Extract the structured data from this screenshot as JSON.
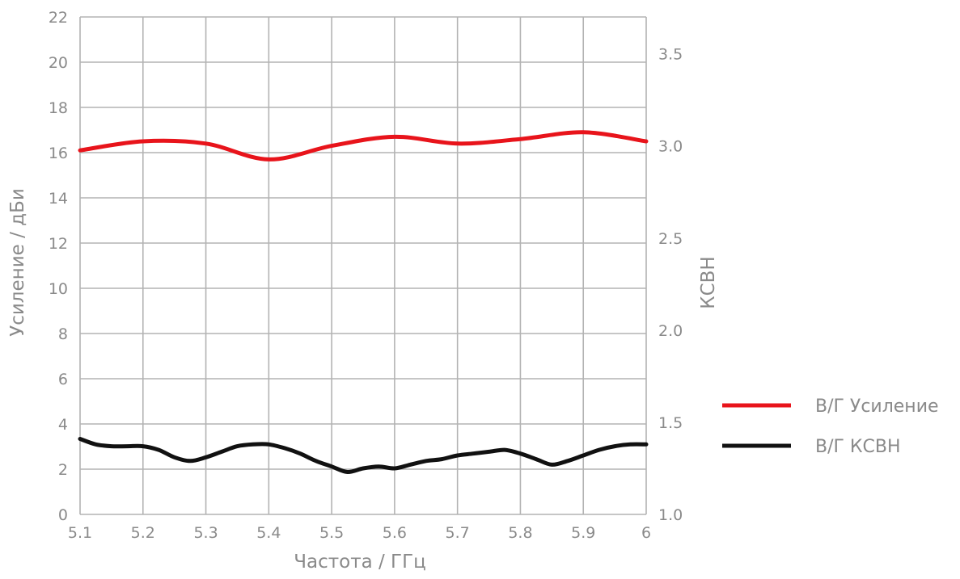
{
  "chart_data": {
    "type": "line",
    "xlabel": "Частота / ГГц",
    "ylabel": "Усиление / дБи",
    "y2label": "КСВН",
    "xlim": [
      5.1,
      6.0
    ],
    "ylim": [
      0,
      22
    ],
    "y2lim": [
      1.0,
      3.7
    ],
    "x_ticks": [
      "5.1",
      "5.2",
      "5.3",
      "5.4",
      "5.5",
      "5.6",
      "5.7",
      "5.8",
      "5.9",
      "6"
    ],
    "y_ticks": [
      "0",
      "2",
      "4",
      "6",
      "8",
      "10",
      "12",
      "14",
      "16",
      "18",
      "20",
      "22"
    ],
    "y2_ticks": [
      "1.0",
      "1.5",
      "2.0",
      "2.5",
      "3.0",
      "3.5"
    ],
    "grid": true,
    "legend_position": "right",
    "series": [
      {
        "name": "В/Г Усиление",
        "axis": "left",
        "color": "#e8141b",
        "x": [
          5.1,
          5.2,
          5.3,
          5.4,
          5.5,
          5.6,
          5.7,
          5.8,
          5.9,
          6.0
        ],
        "y": [
          16.1,
          16.5,
          16.4,
          15.7,
          16.3,
          16.7,
          16.4,
          16.6,
          16.9,
          16.5
        ]
      },
      {
        "name": "В/Г КСВН",
        "axis": "right",
        "color": "#111111",
        "x": [
          5.1,
          5.125,
          5.15,
          5.175,
          5.2,
          5.225,
          5.25,
          5.275,
          5.3,
          5.325,
          5.35,
          5.375,
          5.4,
          5.425,
          5.45,
          5.475,
          5.5,
          5.525,
          5.55,
          5.575,
          5.6,
          5.625,
          5.65,
          5.675,
          5.7,
          5.725,
          5.75,
          5.775,
          5.8,
          5.825,
          5.85,
          5.875,
          5.9,
          5.925,
          5.95,
          5.975,
          6.0
        ],
        "y": [
          1.41,
          1.38,
          1.37,
          1.37,
          1.37,
          1.35,
          1.31,
          1.29,
          1.31,
          1.34,
          1.37,
          1.38,
          1.38,
          1.36,
          1.33,
          1.29,
          1.26,
          1.23,
          1.25,
          1.26,
          1.25,
          1.27,
          1.29,
          1.3,
          1.32,
          1.33,
          1.34,
          1.35,
          1.33,
          1.3,
          1.27,
          1.29,
          1.32,
          1.35,
          1.37,
          1.38,
          1.38
        ]
      }
    ]
  }
}
